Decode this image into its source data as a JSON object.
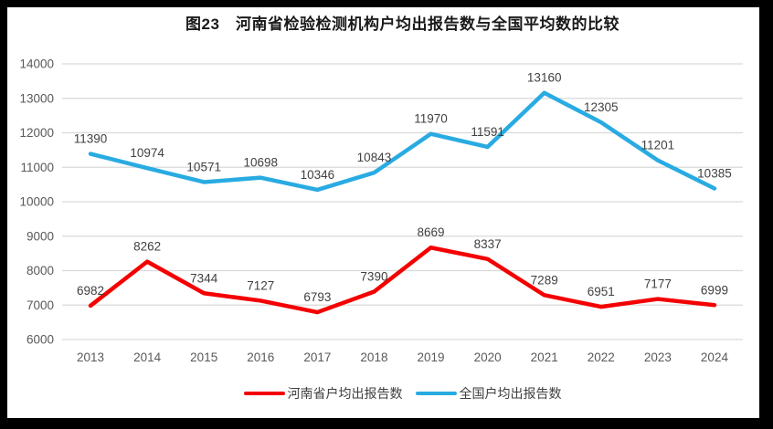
{
  "title": "图23　河南省检验检测机构户均出报告数与全国平均数的比较",
  "colors": {
    "henan": "#F40000",
    "national": "#29ABE2",
    "gridline": "#D9D9D9",
    "axis_text": "#595959",
    "label_text": "#404040",
    "frame": "#000000"
  },
  "chart_data": {
    "type": "line",
    "title": "图23　河南省检验检测机构户均出报告数与全国平均数的比较",
    "categories": [
      "2013",
      "2014",
      "2015",
      "2016",
      "2017",
      "2018",
      "2019",
      "2020",
      "2021",
      "2022",
      "2023",
      "2024"
    ],
    "series": [
      {
        "name": "河南省户均出报告数",
        "color_key": "henan",
        "values": [
          6982,
          8262,
          7344,
          7127,
          6793,
          7390,
          8669,
          8337,
          7289,
          6951,
          7177,
          6999
        ]
      },
      {
        "name": "全国户均出报告数",
        "color_key": "national",
        "values": [
          11390,
          10974,
          10571,
          10698,
          10346,
          10843,
          11970,
          11591,
          13160,
          12305,
          11201,
          10385
        ]
      }
    ],
    "xlabel": "",
    "ylabel": "",
    "ylim": [
      6000,
      14000
    ],
    "ytick_step": 1000,
    "grid": true,
    "legend_position": "bottom",
    "data_labels": true
  }
}
